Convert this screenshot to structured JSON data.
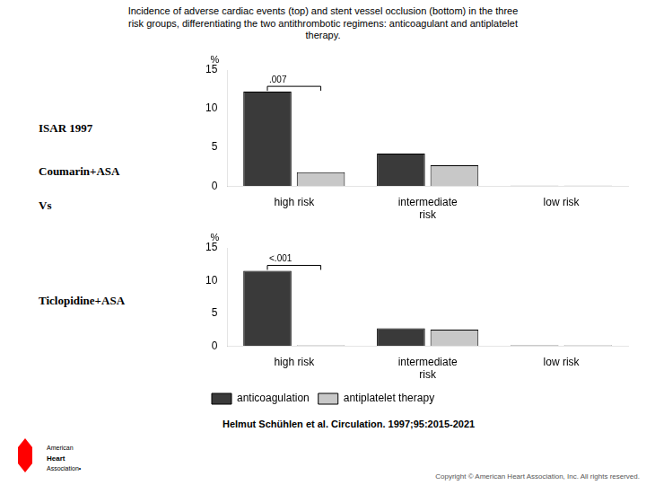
{
  "title": [
    "Incidence of adverse cardiac events (top) and stent vessel occlusion (bottom) in the three",
    "risk groups, differentiating the two antithrombotic regimens: anticoagulant and antiplatelet",
    "therapy."
  ],
  "annotations": [
    "ISAR 1997",
    "Coumarin+ASA",
    "Vs",
    "Ticlopidine+ASA",
    "Helmut Schühlen et al. Circulation. 1997;95:2015-2021",
    "American",
    "Heart",
    "Association•",
    "Copyright © American Heart Association, Inc. All rights reserved."
  ],
  "chart_data": [
    {
      "type": "bar",
      "categories": [
        "high risk",
        "intermediate\nrisk",
        "low risk"
      ],
      "series": [
        {
          "name": "anticoagulation",
          "color": "#3a3a3a",
          "values": [
            12.2,
            4.2,
            0.05
          ]
        },
        {
          "name": "antiplatelet therapy",
          "color": "#c8c8c8",
          "values": [
            1.8,
            2.7,
            0.05
          ]
        }
      ],
      "ylabel": "%",
      "ylim": [
        0,
        15
      ],
      "yticks": [
        0,
        5,
        10,
        15
      ],
      "annotations": [
        ".007"
      ],
      "grid": false
    },
    {
      "type": "bar",
      "categories": [
        "high risk",
        "intermediate\nrisk",
        "low risk"
      ],
      "series": [
        {
          "name": "anticoagulation",
          "color": "#3a3a3a",
          "values": [
            11.5,
            2.7,
            0.1
          ]
        },
        {
          "name": "antiplatelet therapy",
          "color": "#c8c8c8",
          "values": [
            0.1,
            2.5,
            0.1
          ]
        }
      ],
      "ylabel": "%",
      "ylim": [
        0,
        15
      ],
      "yticks": [
        0,
        5,
        10,
        15
      ],
      "annotations": [
        "<.001"
      ],
      "grid": false,
      "legend": "lower left"
    }
  ]
}
